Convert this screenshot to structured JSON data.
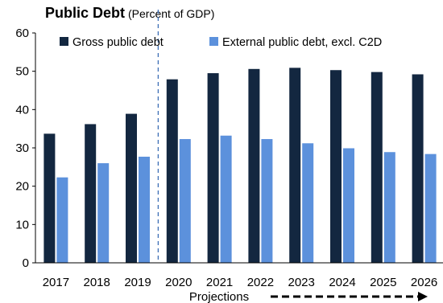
{
  "title": "Public Debt",
  "subtitle": "(Percent of GDP)",
  "colors": {
    "gross": "#132740",
    "external": "#5c91dc",
    "axis": "#000000",
    "divider": "#3d6fb6"
  },
  "chart_data": {
    "type": "bar",
    "title": "Public Debt",
    "subtitle": "(Percent of GDP)",
    "xlabel": "",
    "ylabel": "",
    "ylim": [
      0,
      60
    ],
    "yticks": [
      0,
      10,
      20,
      30,
      40,
      50,
      60
    ],
    "grid": false,
    "legend_position": "top",
    "categories": [
      "2017",
      "2018",
      "2019",
      "2020",
      "2021",
      "2022",
      "2023",
      "2024",
      "2025",
      "2026"
    ],
    "series": [
      {
        "name": "Gross public debt",
        "values": [
          33.7,
          36.2,
          38.9,
          47.9,
          49.5,
          50.6,
          50.9,
          50.3,
          49.8,
          49.2
        ]
      },
      {
        "name": "External public debt, excl. C2D",
        "values": [
          22.3,
          26.0,
          27.7,
          32.3,
          33.2,
          32.3,
          31.2,
          29.9,
          28.9,
          28.4
        ]
      }
    ],
    "divider_after": "2019",
    "annotation": "Projections"
  }
}
